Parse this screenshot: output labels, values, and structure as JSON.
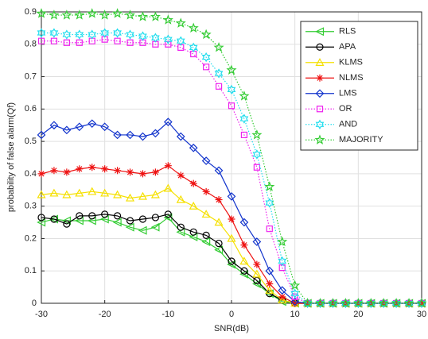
{
  "chart_data": {
    "type": "line",
    "x_label": "SNR(dB)",
    "y_label": "probability of false alarm(Qf)",
    "x": [
      -30,
      -28,
      -26,
      -24,
      -22,
      -20,
      -18,
      -16,
      -14,
      -12,
      -10,
      -8,
      -6,
      -4,
      -2,
      0,
      2,
      4,
      6,
      8,
      10,
      12,
      14,
      16,
      18,
      20,
      22,
      24,
      26,
      28,
      30
    ],
    "xlim": [
      -30,
      30
    ],
    "xticks": [
      -30,
      -20,
      -10,
      0,
      10,
      20,
      30
    ],
    "ylim": [
      0,
      0.9
    ],
    "yticks": [
      0,
      0.1,
      0.2,
      0.3,
      0.4,
      0.5,
      0.6,
      0.7,
      0.8,
      0.9
    ],
    "grid": true,
    "legend": "upper right",
    "series": [
      {
        "name": "RLS",
        "color": "#33cc33",
        "marker": "triangle-left",
        "linestyle": "solid",
        "values": [
          0.25,
          0.26,
          0.255,
          0.255,
          0.255,
          0.26,
          0.25,
          0.235,
          0.225,
          0.235,
          0.265,
          0.22,
          0.205,
          0.19,
          0.165,
          0.12,
          0.09,
          0.06,
          0.03,
          0.005,
          0,
          0,
          0,
          0,
          0,
          0,
          0,
          0,
          0,
          0,
          0
        ]
      },
      {
        "name": "APA",
        "color": "#000000",
        "marker": "circle",
        "linestyle": "solid",
        "values": [
          0.265,
          0.26,
          0.245,
          0.27,
          0.27,
          0.275,
          0.27,
          0.255,
          0.26,
          0.265,
          0.275,
          0.235,
          0.22,
          0.21,
          0.185,
          0.13,
          0.1,
          0.07,
          0.03,
          0.01,
          0,
          0,
          0,
          0,
          0,
          0,
          0,
          0,
          0,
          0,
          0
        ]
      },
      {
        "name": "KLMS",
        "color": "#f5e000",
        "marker": "triangle-up",
        "linestyle": "solid",
        "values": [
          0.335,
          0.34,
          0.335,
          0.34,
          0.345,
          0.34,
          0.335,
          0.325,
          0.33,
          0.335,
          0.355,
          0.32,
          0.3,
          0.275,
          0.25,
          0.2,
          0.13,
          0.09,
          0.04,
          0.01,
          0,
          0,
          0,
          0,
          0,
          0,
          0,
          0,
          0,
          0,
          0
        ]
      },
      {
        "name": "NLMS",
        "color": "#ee1111",
        "marker": "asterisk",
        "linestyle": "solid",
        "values": [
          0.4,
          0.41,
          0.405,
          0.415,
          0.42,
          0.415,
          0.41,
          0.405,
          0.4,
          0.405,
          0.425,
          0.395,
          0.37,
          0.345,
          0.32,
          0.26,
          0.18,
          0.12,
          0.06,
          0.02,
          0,
          0,
          0,
          0,
          0,
          0,
          0,
          0,
          0,
          0,
          0
        ]
      },
      {
        "name": "LMS",
        "color": "#1133cc",
        "marker": "diamond",
        "linestyle": "solid",
        "values": [
          0.52,
          0.55,
          0.535,
          0.545,
          0.555,
          0.545,
          0.52,
          0.52,
          0.515,
          0.525,
          0.56,
          0.515,
          0.48,
          0.44,
          0.41,
          0.33,
          0.25,
          0.19,
          0.1,
          0.04,
          0.005,
          0,
          0,
          0,
          0,
          0,
          0,
          0,
          0,
          0,
          0
        ]
      },
      {
        "name": "OR",
        "color": "#ee22ee",
        "marker": "square",
        "linestyle": "dotted",
        "values": [
          0.81,
          0.81,
          0.805,
          0.805,
          0.81,
          0.815,
          0.81,
          0.805,
          0.805,
          0.8,
          0.8,
          0.79,
          0.77,
          0.73,
          0.67,
          0.61,
          0.52,
          0.42,
          0.23,
          0.11,
          0.02,
          0,
          0,
          0,
          0,
          0,
          0,
          0,
          0,
          0,
          0
        ]
      },
      {
        "name": "AND",
        "color": "#22ddee",
        "marker": "hexagram",
        "linestyle": "dotted",
        "values": [
          0.835,
          0.835,
          0.83,
          0.83,
          0.83,
          0.835,
          0.835,
          0.83,
          0.825,
          0.82,
          0.815,
          0.81,
          0.79,
          0.76,
          0.71,
          0.66,
          0.57,
          0.46,
          0.31,
          0.13,
          0.03,
          0,
          0,
          0,
          0,
          0,
          0,
          0,
          0,
          0,
          0
        ]
      },
      {
        "name": "MAJORITY",
        "color": "#33cc33",
        "marker": "pentagram",
        "linestyle": "dotted",
        "values": [
          0.895,
          0.89,
          0.89,
          0.89,
          0.895,
          0.89,
          0.895,
          0.89,
          0.885,
          0.885,
          0.875,
          0.865,
          0.85,
          0.83,
          0.79,
          0.72,
          0.64,
          0.52,
          0.36,
          0.19,
          0.055,
          0,
          0,
          0,
          0,
          0,
          0,
          0,
          0,
          0,
          0
        ]
      }
    ]
  }
}
